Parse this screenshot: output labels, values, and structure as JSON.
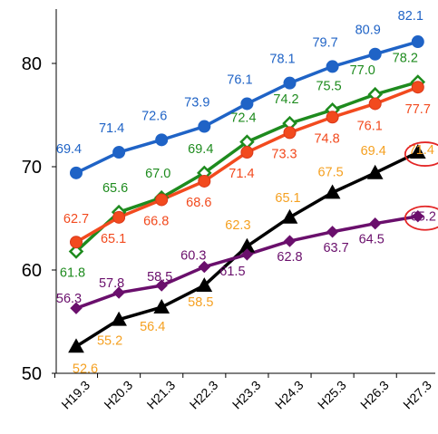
{
  "chart_data": {
    "type": "line",
    "categories": [
      "H19.3",
      "H20.3",
      "H21.3",
      "H22.3",
      "H23.3",
      "H24.3",
      "H25.3",
      "H26.3",
      "H27.3"
    ],
    "ylim": [
      50,
      84
    ],
    "yticks": [
      50,
      60,
      70,
      80
    ],
    "grid": false,
    "legend": "none",
    "series": [
      {
        "values": [
          69.4,
          71.4,
          72.6,
          73.9,
          76.1,
          78.1,
          79.7,
          80.9,
          82.1
        ],
        "color": "#1F63C6",
        "label_color": "#1F63C6",
        "marker": "circle",
        "label_position": "above"
      },
      {
        "values": [
          61.8,
          65.6,
          67.0,
          69.4,
          72.4,
          74.2,
          75.5,
          77.0,
          78.2
        ],
        "color": "#1E8B1E",
        "label_color": "#1E8B1E",
        "marker": "diamond-open",
        "label_position": "above"
      },
      {
        "values": [
          62.7,
          65.1,
          66.8,
          68.6,
          71.4,
          73.3,
          74.8,
          76.1,
          77.7
        ],
        "color": "#F24A1E",
        "label_color": "#F24A1E",
        "marker": "circle",
        "label_position": "below"
      },
      {
        "values": [
          52.6,
          55.2,
          56.4,
          58.5,
          62.3,
          65.1,
          67.5,
          69.4,
          71.4
        ],
        "color": "#000000",
        "label_color": "#F5A020",
        "marker": "triangle",
        "label_position": "mixed"
      },
      {
        "values": [
          56.3,
          57.8,
          58.5,
          60.3,
          61.5,
          62.8,
          63.7,
          64.5,
          65.2
        ],
        "color": "#6A0F6C",
        "label_color": "#6A0F6C",
        "marker": "diamond",
        "label_position": "mixed"
      }
    ],
    "annotations": [
      {
        "type": "ellipse",
        "category": "H27.3",
        "value": 71.4,
        "color": "#E32626"
      },
      {
        "type": "ellipse",
        "category": "H27.3",
        "value": 65.2,
        "color": "#E32626"
      }
    ]
  }
}
